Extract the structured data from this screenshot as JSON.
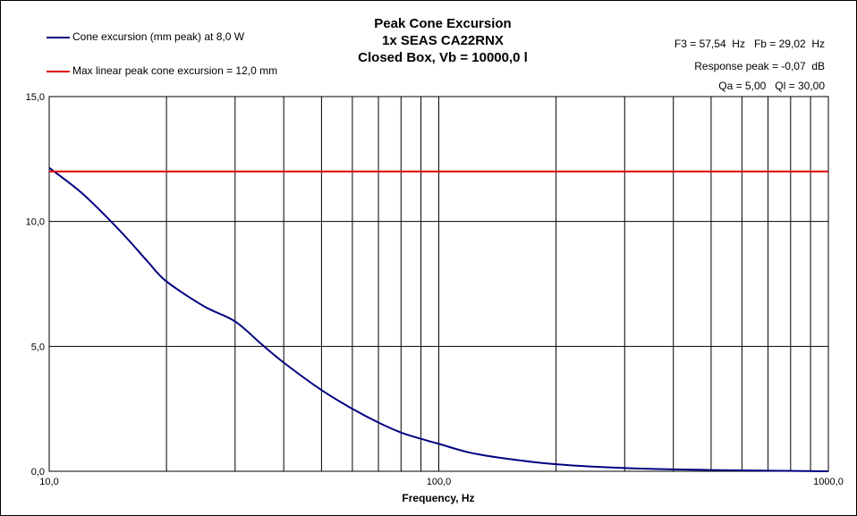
{
  "title": {
    "line1": "Peak Cone Excursion",
    "line2": "1x SEAS CA22RNX",
    "line3": "Closed Box, Vb = 10000,0 l"
  },
  "info": {
    "line1": "F3 = 57,54  Hz   Fb = 29,02  Hz",
    "line2": "Response peak = -0,07  dB",
    "line3": "Qa = 5,00   Ql = 30,00"
  },
  "chart_data": {
    "type": "line",
    "xlabel": "Frequency, Hz",
    "ylabel": "",
    "xscale": "log",
    "xlim": [
      10,
      1000
    ],
    "ylim": [
      0,
      15
    ],
    "grid": true,
    "legend_position": "top-left",
    "x_ticks": [
      "10,0",
      "100,0",
      "1000,0"
    ],
    "y_ticks": [
      "0,0",
      "5,0",
      "10,0",
      "15,0"
    ],
    "series": [
      {
        "name": "Cone excursion (mm peak) at 8,0 W",
        "color": "#000080",
        "x": [
          10,
          12,
          14,
          16,
          18,
          20,
          25,
          30,
          35,
          40,
          50,
          60,
          70,
          80,
          90,
          100,
          120,
          150,
          200,
          300,
          500,
          1000
        ],
        "y": [
          12.15,
          11.2,
          10.2,
          9.25,
          8.35,
          7.6,
          6.6,
          6.0,
          5.1,
          4.35,
          3.25,
          2.5,
          1.95,
          1.55,
          1.3,
          1.1,
          0.75,
          0.5,
          0.28,
          0.13,
          0.05,
          0.0
        ]
      },
      {
        "name": "Max linear peak cone excursion = 12,0 mm",
        "color": "#e00000",
        "x": [
          10,
          1000
        ],
        "y": [
          12.0,
          12.0
        ]
      }
    ]
  }
}
